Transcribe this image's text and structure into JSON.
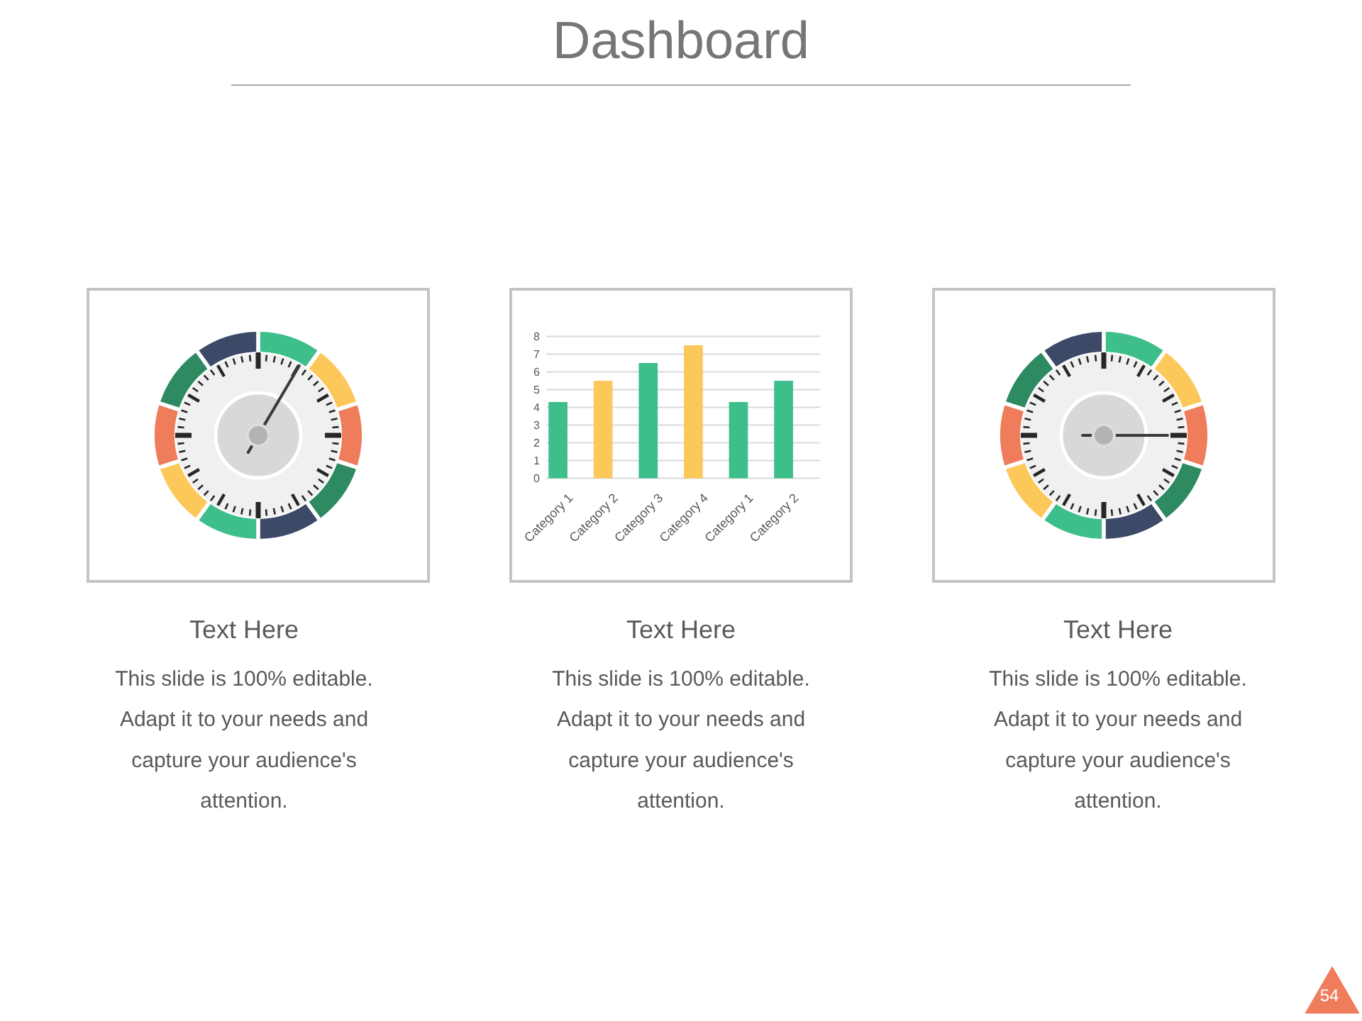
{
  "chart_data": [
    {
      "type": "other",
      "title": "Dashboard",
      "annotations": [
        "54"
      ]
    },
    {
      "type": "other",
      "annotations": [
        "Text Here",
        "This slide is 100% editable.\nAdapt it to your needs and\ncapture your audience's\nattention."
      ]
    },
    {
      "type": "bar",
      "categories": [
        "Category 1",
        "Category 2",
        "Category 3",
        "Category 4",
        "Category 1",
        "Category 2"
      ],
      "values": [
        4.3,
        5.5,
        6.5,
        7.5,
        4.3,
        5.5
      ],
      "colors": [
        "#3dbe8b",
        "#fcc85a",
        "#3dbe8b",
        "#fcc85a",
        "#3dbe8b",
        "#3dbe8b"
      ],
      "ylim": [
        0,
        8
      ],
      "yticks": [
        0,
        1,
        2,
        3,
        4,
        5,
        6,
        7,
        8
      ],
      "grid": "y",
      "annotations": [
        "Text Here",
        "This slide is 100% editable.\nAdapt it to your needs and\ncapture your audience's\nattention."
      ]
    },
    {
      "type": "other",
      "annotations": [
        "Text Here",
        "This slide is 100% editable.\nAdapt it to your needs and\ncapture your audience's\nattention."
      ]
    }
  ]
}
